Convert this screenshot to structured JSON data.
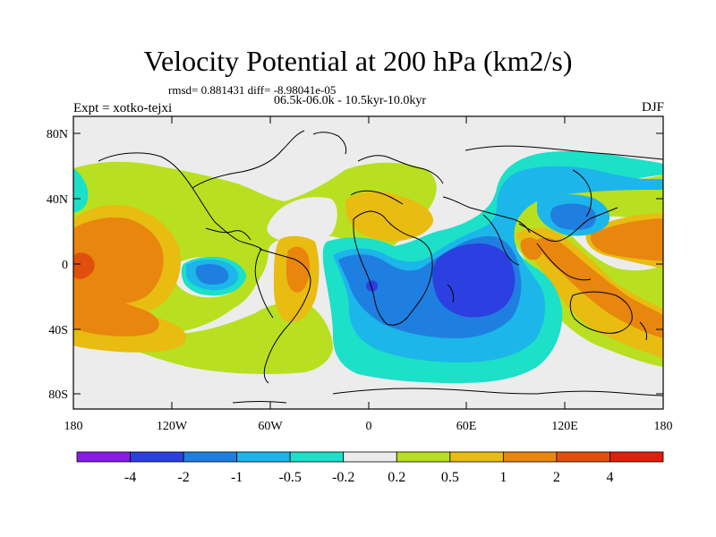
{
  "title": "Velocity Potential at 200 hPa (km2/s)",
  "stats": "rmsd= 0.881431  diff= -8.98041e-05",
  "period": "06.5k-06.0k - 10.5kyr-10.0kyr",
  "experiment": "Expt = xotko-tejxi",
  "season": "DJF",
  "lat_labels": [
    "80N",
    "40N",
    "0",
    "40S",
    "80S"
  ],
  "lon_labels": [
    "180",
    "120W",
    "60W",
    "0",
    "60E",
    "120E",
    "180"
  ],
  "colorbar": {
    "labels": [
      "-4",
      "-2",
      "-1",
      "-0.5",
      "-0.2",
      "0.2",
      "0.5",
      "1",
      "2",
      "4"
    ],
    "colors": [
      "#8a1ae8",
      "#2c3fe0",
      "#1f7fe0",
      "#1cb6ea",
      "#1ce0c8",
      "#ececec",
      "#b8e020",
      "#e8bc10",
      "#e8860e",
      "#e0500c",
      "#e0200c"
    ]
  }
}
